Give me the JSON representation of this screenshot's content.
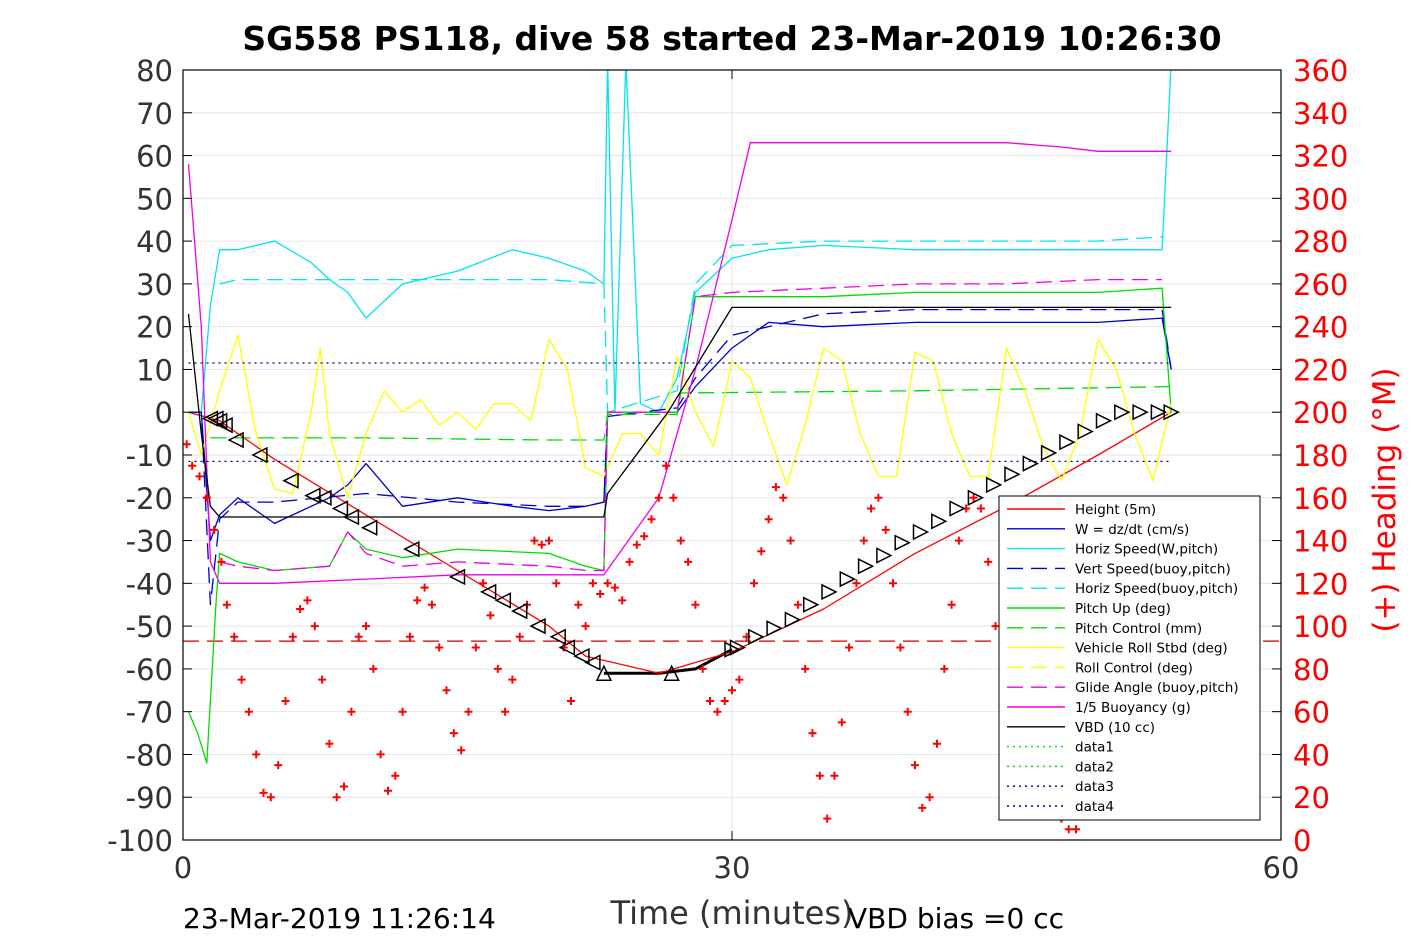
{
  "chart_data": {
    "type": "line",
    "title": "SG558 PS118, dive 58 started 23-Mar-2019 10:26:30",
    "xlabel": "Time (minutes)",
    "ylabel": "",
    "y2label": "(+) Heading (°M)",
    "xlim": [
      0,
      60
    ],
    "ylim": [
      -100,
      80
    ],
    "y2lim": [
      0,
      360
    ],
    "xticks": [
      0,
      30,
      60
    ],
    "yticks": [
      80,
      70,
      60,
      50,
      40,
      30,
      20,
      10,
      0,
      -10,
      -20,
      -30,
      -40,
      -50,
      -60,
      -70,
      -80,
      -90,
      -100
    ],
    "y2ticks": [
      360,
      340,
      320,
      300,
      280,
      260,
      240,
      220,
      200,
      180,
      160,
      140,
      120,
      100,
      80,
      60,
      40,
      20,
      0
    ],
    "grid": true,
    "legend_position": "lower-right",
    "footer_left": "23-Mar-2019 11:26:14",
    "footer_right": "VBD bias =0 cc",
    "series": [
      {
        "name": "Height (5m)",
        "color": "#ff0000",
        "style": "solid",
        "x": [
          0.3,
          2,
          5,
          10,
          15,
          20,
          22,
          26,
          30,
          35,
          40,
          45,
          50,
          54
        ],
        "y": [
          0,
          -2,
          -11,
          -24,
          -37,
          -50,
          -57,
          -61,
          -56,
          -46,
          -33,
          -22,
          -10,
          0
        ]
      },
      {
        "name": "W = dz/dt (cm/s)",
        "color": "#0000cc",
        "style": "solid",
        "x": [
          0.3,
          1,
          1.5,
          2,
          3,
          5,
          8,
          9,
          10,
          12,
          15,
          18,
          20,
          22,
          23,
          23.2,
          25,
          27,
          28,
          30,
          32,
          35,
          40,
          45,
          50,
          53.5,
          54
        ],
        "y": [
          0,
          0,
          -30,
          -24,
          -20,
          -26,
          -20,
          -17,
          -12,
          -22,
          -20,
          -22,
          -23,
          -22,
          -21,
          -1,
          0,
          0,
          6,
          15,
          21,
          20,
          21,
          21,
          21,
          22,
          10
        ]
      },
      {
        "name": "Horiz Speed(W,pitch)",
        "color": "#00e5ee",
        "style": "solid",
        "x": [
          0.3,
          1,
          1.5,
          2,
          3,
          5,
          7,
          8,
          9,
          10,
          12,
          15,
          18,
          20,
          22,
          23,
          23.2,
          23.6,
          24.2,
          25,
          26,
          27,
          28,
          30,
          32,
          35,
          40,
          45,
          50,
          53.5,
          54
        ],
        "y": [
          0,
          0,
          25,
          38,
          38,
          40,
          35,
          31,
          28,
          22,
          30,
          33,
          38,
          36,
          33,
          30,
          82,
          0,
          82,
          2,
          0,
          8,
          28,
          36,
          38,
          39,
          38,
          38,
          38,
          38,
          82
        ]
      },
      {
        "name": "Vert Speed(buoy,pitch)",
        "color": "#0000cc",
        "style": "dashed",
        "x": [
          0.3,
          1,
          1.5,
          2,
          3,
          5,
          10,
          15,
          20,
          22,
          23,
          23.2,
          25,
          27,
          28,
          30,
          35,
          40,
          45,
          50,
          53.5,
          54
        ],
        "y": [
          0,
          0,
          -45,
          -25,
          -21,
          -21,
          -19,
          -21,
          -22,
          -22,
          -21,
          0,
          0,
          1,
          8,
          18,
          23,
          24,
          24,
          24,
          24,
          10
        ]
      },
      {
        "name": "Horiz Speed(buoy,pitch)",
        "color": "#00e5ee",
        "style": "dashed",
        "x": [
          2,
          3,
          5,
          10,
          15,
          20,
          23,
          23.2,
          27,
          28,
          30,
          35,
          40,
          45,
          50,
          53.5
        ],
        "y": [
          30,
          31,
          31,
          31,
          31,
          31,
          30,
          0,
          5,
          30,
          39,
          40,
          40,
          40,
          40,
          41
        ]
      },
      {
        "name": "Pitch Up (deg)",
        "color": "#00dd00",
        "style": "solid",
        "x": [
          0.3,
          0.8,
          1.3,
          1.8,
          2,
          3,
          5,
          8,
          9,
          10,
          12,
          15,
          20,
          22,
          23,
          23.2,
          25,
          27,
          28,
          30,
          35,
          40,
          45,
          50,
          53.5,
          54
        ],
        "y": [
          -70,
          -75,
          -82,
          -45,
          -33,
          -35,
          -37,
          -36,
          -28,
          -32,
          -34,
          -32,
          -33,
          -36,
          -37,
          0,
          0,
          0,
          27,
          27,
          27,
          28,
          28,
          28,
          29,
          0
        ]
      },
      {
        "name": "Pitch Control (mm)",
        "color": "#00dd00",
        "style": "dashed",
        "x": [
          1.5,
          10,
          20,
          23,
          23.2,
          27,
          27.2,
          40,
          54
        ],
        "y": [
          -6,
          -6,
          -6.5,
          -6.5,
          -0.5,
          -0.5,
          4.5,
          5,
          6
        ]
      },
      {
        "name": "Vehicle Roll Stbd (deg)",
        "color": "#ffff00",
        "style": "solid",
        "x": [
          0.3,
          1,
          2,
          3,
          4,
          5,
          6,
          7,
          7.5,
          8,
          9,
          10,
          11,
          12,
          13,
          14,
          15,
          16,
          17,
          18,
          19,
          20,
          21,
          22,
          23,
          24,
          25,
          26,
          27,
          28,
          29,
          30,
          31,
          32,
          33,
          34,
          35,
          36,
          37,
          38,
          39,
          40,
          41,
          42,
          43,
          44,
          45,
          46,
          47,
          48,
          49,
          50,
          51,
          52,
          53,
          54
        ],
        "y": [
          0,
          -10,
          5,
          18,
          -5,
          -18,
          -19,
          0,
          15,
          -5,
          -20,
          -5,
          5,
          0,
          3,
          -3,
          0,
          -4,
          2,
          2,
          -2,
          17,
          10,
          -13,
          -15,
          -5,
          -5,
          -10,
          13,
          0,
          -8,
          12,
          8,
          -5,
          -17,
          -3,
          15,
          12,
          -5,
          -15,
          -15,
          14,
          12,
          -5,
          -15,
          -15,
          15,
          5,
          -8,
          -16,
          -5,
          17,
          10,
          -5,
          -16,
          2
        ]
      },
      {
        "name": "Roll Control (deg)",
        "color": "#ffff00",
        "style": "dashed",
        "x": [],
        "y": []
      },
      {
        "name": "Glide Angle (buoy,pitch)",
        "color": "#ee00ee",
        "style": "dashed",
        "x": [
          2,
          3,
          5,
          8,
          9,
          10,
          12,
          15,
          20,
          22,
          23,
          23.2,
          27,
          28,
          30,
          35,
          40,
          45,
          50,
          53.5
        ],
        "y": [
          -35,
          -36,
          -37,
          -36,
          -28,
          -33,
          -36,
          -35,
          -36,
          -37,
          -37,
          0,
          0,
          27,
          28,
          29,
          30,
          30,
          31,
          31
        ]
      },
      {
        "name": "1/5 Buoyancy (g)",
        "color": "#ee00ee",
        "style": "solid",
        "x": [
          0.3,
          1,
          1.5,
          2,
          5,
          10,
          15,
          20,
          23,
          26,
          28,
          30,
          31,
          35,
          40,
          45,
          48,
          50,
          54
        ],
        "y": [
          58,
          20,
          -35,
          -40,
          -40,
          -39,
          -38,
          -38,
          -38,
          -20,
          10,
          45,
          63,
          63,
          63,
          63,
          62,
          61,
          61
        ]
      },
      {
        "name": "VBD (10 cc)",
        "color": "#000000",
        "style": "solid",
        "x": [
          0.3,
          1,
          1.5,
          2,
          5,
          10,
          15,
          20,
          23,
          23.2,
          26.5,
          30,
          54
        ],
        "y": [
          23,
          -5,
          -22,
          -24.5,
          -24.5,
          -24.5,
          -24.5,
          -24.5,
          -24.5,
          -19,
          0,
          24.5,
          24.5
        ]
      },
      {
        "name": "data1",
        "color": "#00dd00",
        "style": "dotted",
        "x": [],
        "y": []
      },
      {
        "name": "data2",
        "color": "#00dd00",
        "style": "dotted",
        "x": [],
        "y": []
      },
      {
        "name": "data3",
        "color": "#000080",
        "style": "dotted",
        "x": [
          0.3,
          54
        ],
        "y": [
          11.5,
          11.5
        ]
      },
      {
        "name": "data4",
        "color": "#000080",
        "style": "dotted",
        "x": [
          0.3,
          54
        ],
        "y": [
          -11.5,
          -11.5
        ]
      }
    ],
    "extra_lines": [
      {
        "color": "#cc0000",
        "style": "dashed",
        "axis": "left",
        "x": [
          0,
          60
        ],
        "y": [
          -53.5,
          -53.5
        ]
      },
      {
        "color": "#000000",
        "style": "solid_bold",
        "axis": "left",
        "x": [
          23,
          26,
          28,
          30
        ],
        "y": [
          -61,
          -61,
          -60,
          -55.5
        ]
      }
    ],
    "heading": {
      "color": "#ff0000",
      "marker": "+",
      "axis": "right",
      "x": [
        0.2,
        0.5,
        0.9,
        1.3,
        1.7,
        2.1,
        2.4,
        2.8,
        3.2,
        3.6,
        4.0,
        4.4,
        4.8,
        5.2,
        5.6,
        6.0,
        6.4,
        6.8,
        7.2,
        7.6,
        8.0,
        8.4,
        8.8,
        9.2,
        9.6,
        10.0,
        10.4,
        10.8,
        11.2,
        11.6,
        12.0,
        12.4,
        12.8,
        13.2,
        13.6,
        14.0,
        14.4,
        14.8,
        15.2,
        15.6,
        16.0,
        16.4,
        16.8,
        17.2,
        17.6,
        18.0,
        18.4,
        18.8,
        19.2,
        19.6,
        20.0,
        20.4,
        20.8,
        21.2,
        21.6,
        22.0,
        22.4,
        22.8,
        23.2,
        23.6,
        24.0,
        24.4,
        24.8,
        25.2,
        25.6,
        26.0,
        26.4,
        26.8,
        27.2,
        27.6,
        28.0,
        28.4,
        28.8,
        29.2,
        29.6,
        30.0,
        30.4,
        30.8,
        31.2,
        31.6,
        32.0,
        32.4,
        32.8,
        33.2,
        33.6,
        34.0,
        34.4,
        34.8,
        35.2,
        35.6,
        36.0,
        36.4,
        36.8,
        37.2,
        37.6,
        38.0,
        38.4,
        38.8,
        39.2,
        39.6,
        40.0,
        40.4,
        40.8,
        41.2,
        41.6,
        42.0,
        42.4,
        42.8,
        43.2,
        43.6,
        44.0,
        44.4,
        44.8,
        45.2,
        45.6,
        46.0,
        46.4,
        46.8,
        47.2,
        47.6,
        48.0,
        48.4,
        48.8
      ],
      "y": [
        185,
        175,
        170,
        160,
        145,
        130,
        110,
        95,
        75,
        60,
        40,
        22,
        20,
        35,
        65,
        95,
        108,
        112,
        100,
        75,
        45,
        20,
        25,
        60,
        95,
        100,
        80,
        40,
        23,
        30,
        60,
        95,
        112,
        118,
        110,
        90,
        70,
        50,
        42,
        60,
        90,
        120,
        105,
        80,
        60,
        75,
        95,
        110,
        140,
        138,
        140,
        120,
        90,
        65,
        110,
        100,
        120,
        115,
        120,
        118,
        112,
        130,
        138,
        142,
        150,
        160,
        175,
        160,
        140,
        130,
        110,
        80,
        65,
        60,
        65,
        70,
        75,
        95,
        120,
        135,
        150,
        165,
        160,
        140,
        110,
        80,
        50,
        30,
        10,
        30,
        55,
        90,
        120,
        140,
        155,
        160,
        145,
        120,
        90,
        60,
        35,
        15,
        20,
        45,
        80,
        110,
        140,
        155,
        160,
        155,
        130,
        100,
        75,
        50,
        25,
        15,
        20,
        35,
        50,
        30,
        10,
        5,
        5
      ]
    },
    "descent_markers": {
      "x": [
        1.5,
        1.8,
        2.0,
        2.3,
        2.9,
        4.2,
        5.9,
        7.1,
        7.7,
        8.6,
        9.2,
        10.2,
        12.5,
        15.0,
        16.7,
        17.5,
        18.4,
        19.4,
        20.5,
        21.0,
        21.8,
        22.4
      ],
      "y": [
        -1.5,
        -1.5,
        -2,
        -3,
        -6.5,
        -10,
        -16,
        -19.5,
        -20,
        -22.5,
        -24.5,
        -27,
        -32,
        -38.5,
        -42,
        -44,
        -46.5,
        -50,
        -52.5,
        -55,
        -57,
        -58.5
      ]
    },
    "apogee_markers": {
      "x": [
        23.0,
        26.7
      ],
      "y": [
        -61,
        -61
      ]
    },
    "ascent_markers": {
      "x": [
        30.0,
        30.3,
        31.3,
        32.3,
        33.3,
        34.3,
        35.3,
        36.3,
        37.3,
        38.3,
        39.3,
        40.3,
        41.3,
        42.3,
        43.3,
        44.3,
        45.3,
        46.3,
        47.3,
        48.3,
        49.3,
        50.3,
        51.3,
        52.3,
        53.3,
        54.0
      ],
      "y": [
        -55.5,
        -55,
        -52.5,
        -50.5,
        -48.5,
        -45,
        -42,
        -39,
        -36,
        -33.5,
        -30.5,
        -28,
        -25.5,
        -22.5,
        -20,
        -17,
        -14.5,
        -12,
        -9.5,
        -7,
        -4.5,
        -2,
        0,
        0,
        0,
        0
      ]
    }
  }
}
